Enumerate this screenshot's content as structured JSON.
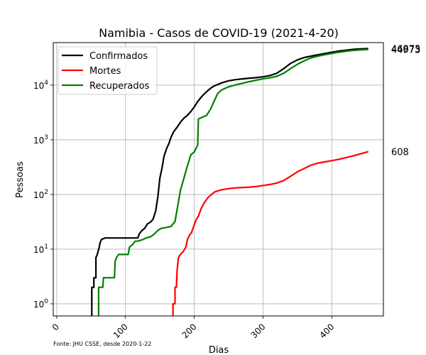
{
  "chart_data": {
    "type": "line",
    "title": "Namibia - Casos de COVID-19 (2021-4-20)",
    "xlabel": "Dias",
    "ylabel": "Pessoas",
    "xlim": [
      -5,
      475
    ],
    "ylim": [
      0.6,
      60000
    ],
    "yscale": "log",
    "grid": true,
    "legend_position": "top-left",
    "x_ticks": [
      0,
      100,
      200,
      300,
      400
    ],
    "y_ticks": [
      {
        "value": 1,
        "base": "10",
        "exp": "0"
      },
      {
        "value": 10,
        "base": "10",
        "exp": "1"
      },
      {
        "value": 100,
        "base": "10",
        "exp": "2"
      },
      {
        "value": 1000,
        "base": "10",
        "exp": "3"
      },
      {
        "value": 10000,
        "base": "10",
        "exp": "4"
      }
    ],
    "source_text": "Fonte: JHU CSSE, desde 2020-1-22",
    "series": [
      {
        "name": "Confirmados",
        "color": "#000000",
        "end_label": "46875",
        "points": [
          [
            51,
            0.6
          ],
          [
            51,
            2
          ],
          [
            54,
            2
          ],
          [
            54,
            3
          ],
          [
            57,
            3
          ],
          [
            57,
            7
          ],
          [
            59,
            8
          ],
          [
            62,
            11
          ],
          [
            63,
            13
          ],
          [
            65,
            15
          ],
          [
            70,
            16
          ],
          [
            80,
            16
          ],
          [
            100,
            16
          ],
          [
            118,
            16
          ],
          [
            120,
            19
          ],
          [
            124,
            22
          ],
          [
            128,
            24
          ],
          [
            132,
            29
          ],
          [
            136,
            31
          ],
          [
            140,
            35
          ],
          [
            144,
            50
          ],
          [
            147,
            90
          ],
          [
            150,
            200
          ],
          [
            153,
            300
          ],
          [
            156,
            500
          ],
          [
            160,
            700
          ],
          [
            163,
            850
          ],
          [
            166,
            1100
          ],
          [
            170,
            1400
          ],
          [
            175,
            1700
          ],
          [
            180,
            2100
          ],
          [
            185,
            2500
          ],
          [
            190,
            2800
          ],
          [
            195,
            3300
          ],
          [
            200,
            4000
          ],
          [
            205,
            5000
          ],
          [
            210,
            6000
          ],
          [
            215,
            7000
          ],
          [
            220,
            8000
          ],
          [
            225,
            9000
          ],
          [
            230,
            9800
          ],
          [
            240,
            11000
          ],
          [
            250,
            12000
          ],
          [
            260,
            12600
          ],
          [
            270,
            13000
          ],
          [
            280,
            13400
          ],
          [
            290,
            13700
          ],
          [
            300,
            14200
          ],
          [
            310,
            15000
          ],
          [
            320,
            16500
          ],
          [
            330,
            20000
          ],
          [
            340,
            25000
          ],
          [
            350,
            29000
          ],
          [
            360,
            32000
          ],
          [
            370,
            34000
          ],
          [
            380,
            36000
          ],
          [
            390,
            38000
          ],
          [
            400,
            40000
          ],
          [
            410,
            42000
          ],
          [
            420,
            43500
          ],
          [
            430,
            45000
          ],
          [
            440,
            46000
          ],
          [
            453,
            46875
          ]
        ]
      },
      {
        "name": "Mortes",
        "color": "#ff0000",
        "end_label": "608",
        "points": [
          [
            169,
            0.6
          ],
          [
            169,
            1
          ],
          [
            172,
            1
          ],
          [
            172,
            2
          ],
          [
            174,
            2
          ],
          [
            175,
            4
          ],
          [
            177,
            7
          ],
          [
            180,
            8
          ],
          [
            184,
            9
          ],
          [
            186,
            10
          ],
          [
            188,
            11
          ],
          [
            190,
            15
          ],
          [
            193,
            18
          ],
          [
            196,
            20
          ],
          [
            200,
            28
          ],
          [
            203,
            35
          ],
          [
            206,
            40
          ],
          [
            210,
            55
          ],
          [
            213,
            65
          ],
          [
            216,
            75
          ],
          [
            220,
            88
          ],
          [
            225,
            100
          ],
          [
            230,
            112
          ],
          [
            240,
            122
          ],
          [
            250,
            128
          ],
          [
            260,
            132
          ],
          [
            270,
            134
          ],
          [
            280,
            136
          ],
          [
            290,
            140
          ],
          [
            300,
            146
          ],
          [
            310,
            152
          ],
          [
            320,
            162
          ],
          [
            330,
            180
          ],
          [
            340,
            215
          ],
          [
            350,
            260
          ],
          [
            360,
            300
          ],
          [
            370,
            345
          ],
          [
            380,
            375
          ],
          [
            390,
            395
          ],
          [
            400,
            415
          ],
          [
            410,
            440
          ],
          [
            420,
            470
          ],
          [
            430,
            505
          ],
          [
            440,
            545
          ],
          [
            453,
            608
          ]
        ]
      },
      {
        "name": "Recuperados",
        "color": "#008000",
        "end_label": "44973",
        "points": [
          [
            61,
            0.6
          ],
          [
            61,
            2
          ],
          [
            64,
            2
          ],
          [
            65,
            2
          ],
          [
            66,
            2
          ],
          [
            67,
            2
          ],
          [
            68,
            3
          ],
          [
            80,
            3
          ],
          [
            84,
            3
          ],
          [
            85,
            6
          ],
          [
            87,
            7
          ],
          [
            90,
            8
          ],
          [
            100,
            8
          ],
          [
            104,
            8
          ],
          [
            106,
            11
          ],
          [
            110,
            12
          ],
          [
            114,
            14
          ],
          [
            118,
            14
          ],
          [
            125,
            15
          ],
          [
            130,
            16
          ],
          [
            137,
            17
          ],
          [
            142,
            19
          ],
          [
            147,
            22
          ],
          [
            152,
            24
          ],
          [
            160,
            25
          ],
          [
            166,
            26
          ],
          [
            172,
            32
          ],
          [
            180,
            120
          ],
          [
            184,
            180
          ],
          [
            189,
            300
          ],
          [
            195,
            530
          ],
          [
            200,
            600
          ],
          [
            205,
            800
          ],
          [
            206,
            2400
          ],
          [
            212,
            2600
          ],
          [
            218,
            2800
          ],
          [
            224,
            3700
          ],
          [
            228,
            4800
          ],
          [
            234,
            7000
          ],
          [
            240,
            8200
          ],
          [
            250,
            9300
          ],
          [
            260,
            10100
          ],
          [
            270,
            10800
          ],
          [
            280,
            11600
          ],
          [
            290,
            12300
          ],
          [
            300,
            13000
          ],
          [
            310,
            13600
          ],
          [
            320,
            14500
          ],
          [
            330,
            16500
          ],
          [
            340,
            20000
          ],
          [
            350,
            24000
          ],
          [
            360,
            28000
          ],
          [
            370,
            31500
          ],
          [
            380,
            34000
          ],
          [
            390,
            36000
          ],
          [
            400,
            38000
          ],
          [
            410,
            40000
          ],
          [
            420,
            41500
          ],
          [
            430,
            43000
          ],
          [
            440,
            44000
          ],
          [
            453,
            44973
          ]
        ]
      }
    ]
  }
}
